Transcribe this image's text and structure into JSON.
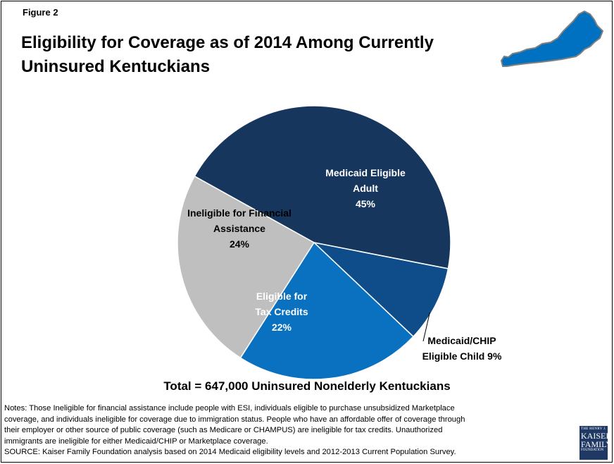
{
  "figure_label": "Figure 2",
  "title_line1": "Eligibility for Coverage as of 2014 Among Currently",
  "title_line2": "Uninsured Kentuckians",
  "map_icon": "kentucky-state-map-icon",
  "colors": {
    "medicaid_adult": "#17365d",
    "medicaid_child": "#0e4d8a",
    "tax_credits": "#0a70c0",
    "ineligible": "#bfbfbf"
  },
  "chart_data": {
    "type": "pie",
    "title": "",
    "slices": [
      {
        "label_lines": [
          "Medicaid Eligible",
          "Adult",
          "45%"
        ],
        "value": 45,
        "color": "#17365d",
        "label_color": "#ffffff"
      },
      {
        "label_lines": [
          "Medicaid/CHIP",
          "Eligible Child 9%"
        ],
        "value": 9,
        "color": "#0e4d8a",
        "label_color": "#000000"
      },
      {
        "label_lines": [
          "Eligible for",
          "Tax Credits",
          "22%"
        ],
        "value": 22,
        "color": "#0a70c0",
        "label_color": "#ffffff"
      },
      {
        "label_lines": [
          "Ineligible for Financial",
          "Assistance",
          "24%"
        ],
        "value": 24,
        "color": "#bfbfbf",
        "label_color": "#000000"
      }
    ]
  },
  "total_label": "Total = 647,000 Uninsured Nonelderly Kentuckians",
  "notes": [
    "Notes: Those Ineligible for financial assistance include people with ESI, individuals eligible to purchase unsubsidized Marketplace",
    "coverage, and individuals ineligible for coverage due to immigration status. People who have an affordable offer of coverage through",
    "their employer or other source of public coverage (such as Medicare or CHAMPUS) are ineligible for tax credits. Unauthorized",
    "immigrants are ineligible for either Medicaid/CHIP or Marketplace coverage.",
    "SOURCE: Kaiser Family Foundation analysis based on 2014 Medicaid eligibility levels and 2012-2013 Current Population Survey."
  ],
  "logo": {
    "line1": "THE HENRY J.",
    "line2": "KAISER",
    "line3": "FAMILY",
    "line4": "FOUNDATION"
  }
}
